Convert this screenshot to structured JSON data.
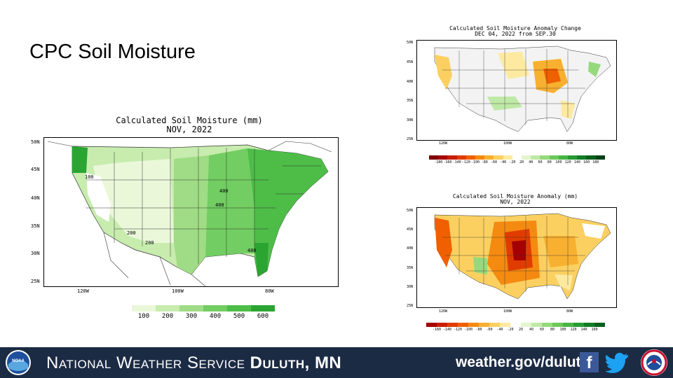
{
  "slide": {
    "title": "CPC Soil Moisture"
  },
  "footer": {
    "org_prefix": "National Weather Service",
    "office": "Duluth, MN",
    "url": "weather.gov/duluth",
    "icons": [
      "noaa-logo-icon",
      "facebook-icon",
      "twitter-icon",
      "nws-logo-icon"
    ]
  },
  "maps": {
    "main": {
      "title_line1": "Calculated Soil Moisture (mm)",
      "title_line2": "NOV, 2022",
      "lat_ticks": [
        "50N",
        "45N",
        "40N",
        "35N",
        "30N",
        "25N"
      ],
      "lon_ticks": [
        "120W",
        "100W",
        "80W"
      ],
      "contour_labels": [
        "100",
        "200",
        "200",
        "400",
        "400",
        "400"
      ],
      "legend": {
        "labels": [
          "100",
          "200",
          "300",
          "400",
          "500",
          "600"
        ],
        "colors": [
          "#eaf8d9",
          "#c7ecae",
          "#9fdc85",
          "#72cd62",
          "#4ebd48",
          "#2aa532"
        ]
      }
    },
    "change": {
      "title_line1": "Calculated Soil Moisture Anomaly Change",
      "title_line2": "DEC 04, 2022 from SEP.30",
      "lat_ticks": [
        "50N",
        "45N",
        "40N",
        "35N",
        "30N",
        "25N"
      ],
      "lon_ticks": [
        "120W",
        "100W",
        "80W"
      ],
      "legend": {
        "labels": [
          "-180",
          "-160",
          "-140",
          "-120",
          "-100",
          "-80",
          "-60",
          "-40",
          "-20",
          "20",
          "40",
          "60",
          "80",
          "100",
          "120",
          "140",
          "160",
          "180"
        ],
        "colors": [
          "#7f0000",
          "#a50000",
          "#c81e00",
          "#e03c00",
          "#f06000",
          "#f58a10",
          "#f8b030",
          "#fbd060",
          "#fdeaa0",
          "#ffffff",
          "#e3f5cd",
          "#bfe9a6",
          "#95d97c",
          "#6cc85b",
          "#47b544",
          "#269b34",
          "#127d27",
          "#05601b",
          "#004015"
        ]
      }
    },
    "anomaly": {
      "title_line1": "Calculated Soil Moisture Anomaly (mm)",
      "title_line2": "NOV, 2022",
      "lat_ticks": [
        "50N",
        "45N",
        "40N",
        "35N",
        "30N",
        "25N"
      ],
      "lon_ticks": [
        "120W",
        "100W",
        "80W"
      ],
      "legend": {
        "labels": [
          "-160",
          "-140",
          "-120",
          "-100",
          "-80",
          "-60",
          "-40",
          "-20",
          "20",
          "40",
          "60",
          "80",
          "100",
          "120",
          "140",
          "160"
        ],
        "colors": [
          "#a50000",
          "#c81e00",
          "#e03c00",
          "#f06000",
          "#f58a10",
          "#f8b030",
          "#fbd060",
          "#fdeaa0",
          "#ffffff",
          "#e3f5cd",
          "#bfe9a6",
          "#95d97c",
          "#6cc85b",
          "#47b544",
          "#269b34",
          "#127d27",
          "#05601b"
        ]
      }
    }
  }
}
